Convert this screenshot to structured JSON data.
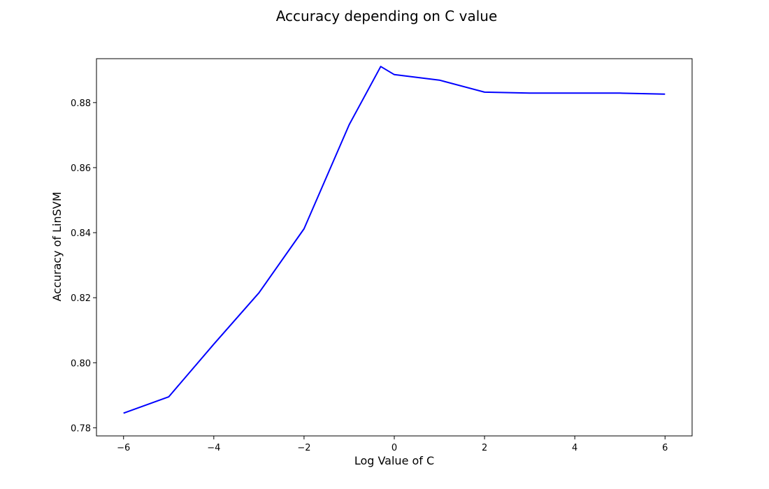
{
  "chart_data": {
    "type": "line",
    "title": "Accuracy depending on C value",
    "xlabel": "Log Value of C",
    "ylabel": "Accuracy of LinSVM",
    "xlim": [
      -6.6,
      6.6
    ],
    "ylim": [
      0.7775,
      0.8935
    ],
    "xticks": [
      -6,
      -4,
      -2,
      0,
      2,
      4,
      6
    ],
    "xtick_labels": [
      "−6",
      "−4",
      "−2",
      "0",
      "2",
      "4",
      "6"
    ],
    "yticks": [
      0.78,
      0.8,
      0.82,
      0.84,
      0.86,
      0.88
    ],
    "ytick_labels": [
      "0.78",
      "0.80",
      "0.82",
      "0.84",
      "0.86",
      "0.88"
    ],
    "grid": false,
    "series": [
      {
        "name": "accuracy",
        "color": "#0000ff",
        "x": [
          -6,
          -5,
          -4,
          -3,
          -2,
          -1,
          -0.3,
          0,
          1,
          2,
          3,
          4,
          5,
          6
        ],
        "y": [
          0.7845,
          0.7895,
          0.8057,
          0.8215,
          0.8412,
          0.8732,
          0.8911,
          0.8886,
          0.8869,
          0.8832,
          0.8829,
          0.8829,
          0.8829,
          0.8826
        ]
      }
    ]
  }
}
